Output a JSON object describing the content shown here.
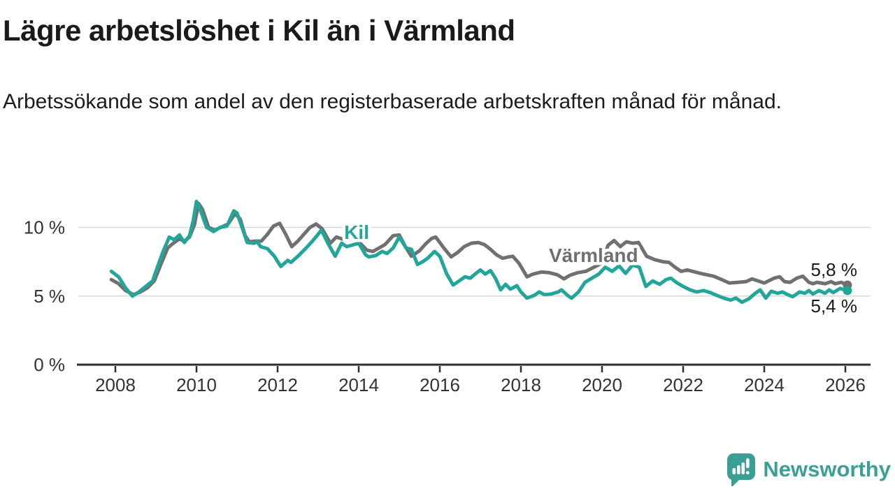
{
  "header": {
    "title": "Lägre arbetslöshet i Kil än i Värmland",
    "subtitle": "Arbetssökande som andel av den registerbaserade arbetskraften månad för månad."
  },
  "footer": {
    "brand": "Newsworthy",
    "brand_color": "#3aa096"
  },
  "chart_data": {
    "type": "line",
    "title": "Lägre arbetslöshet i Kil än i Värmland",
    "x_unit": "year (decimal, monthly series)",
    "x_range": [
      2007.9,
      2026.05
    ],
    "ylim": [
      0,
      12
    ],
    "grid": "horizontal",
    "legend_position": "inline-labels-on-lines",
    "axis_color": "#2e2e2e",
    "gridline_color": "#d9d9d9",
    "tick_label_color": "#333333",
    "x_axis": {
      "ticks": [
        2008,
        2010,
        2012,
        2014,
        2016,
        2018,
        2020,
        2022,
        2024,
        2026
      ],
      "tick_labels": [
        "2008",
        "2010",
        "2012",
        "2014",
        "2016",
        "2018",
        "2020",
        "2022",
        "2024",
        "2026"
      ]
    },
    "y_axis": {
      "ticks": [
        0,
        5,
        10
      ],
      "tick_labels": [
        "0 %",
        "5 %",
        "10 %"
      ]
    },
    "annotations": {
      "end_label_color": "#1a1a1a"
    },
    "series": [
      {
        "name": "Värmland",
        "color": "#707070",
        "end_label": "5,8 %",
        "end_label_side": "above",
        "label_anchor": {
          "year": 2019.79,
          "value": 7.48
        },
        "points": [
          [
            2007.9,
            6.2
          ],
          [
            2008.08,
            5.9
          ],
          [
            2008.25,
            5.4
          ],
          [
            2008.45,
            5.1
          ],
          [
            2008.62,
            5.3
          ],
          [
            2008.79,
            5.6
          ],
          [
            2008.96,
            6.1
          ],
          [
            2009.12,
            7.3
          ],
          [
            2009.29,
            8.5
          ],
          [
            2009.45,
            8.9
          ],
          [
            2009.58,
            9.15
          ],
          [
            2009.7,
            9.0
          ],
          [
            2009.83,
            9.3
          ],
          [
            2009.95,
            10.2
          ],
          [
            2010.05,
            11.75
          ],
          [
            2010.15,
            11.3
          ],
          [
            2010.3,
            10.0
          ],
          [
            2010.45,
            9.8
          ],
          [
            2010.6,
            10.0
          ],
          [
            2010.78,
            10.25
          ],
          [
            2010.95,
            11.0
          ],
          [
            2011.08,
            10.6
          ],
          [
            2011.2,
            9.4
          ],
          [
            2011.3,
            8.95
          ],
          [
            2011.45,
            9.0
          ],
          [
            2011.6,
            9.0
          ],
          [
            2011.75,
            9.5
          ],
          [
            2011.9,
            10.1
          ],
          [
            2012.05,
            10.3
          ],
          [
            2012.2,
            9.5
          ],
          [
            2012.35,
            8.6
          ],
          [
            2012.5,
            9.0
          ],
          [
            2012.65,
            9.5
          ],
          [
            2012.8,
            10.0
          ],
          [
            2012.95,
            10.25
          ],
          [
            2013.1,
            9.9
          ],
          [
            2013.3,
            8.85
          ],
          [
            2013.45,
            9.3
          ],
          [
            2013.6,
            9.15
          ],
          [
            2013.8,
            9.3
          ],
          [
            2014.0,
            8.95
          ],
          [
            2014.2,
            8.35
          ],
          [
            2014.35,
            8.25
          ],
          [
            2014.5,
            8.5
          ],
          [
            2014.65,
            8.75
          ],
          [
            2014.85,
            9.4
          ],
          [
            2015.0,
            9.45
          ],
          [
            2015.15,
            8.6
          ],
          [
            2015.3,
            7.9
          ],
          [
            2015.5,
            8.3
          ],
          [
            2015.65,
            8.8
          ],
          [
            2015.8,
            9.2
          ],
          [
            2015.9,
            9.3
          ],
          [
            2016.1,
            8.5
          ],
          [
            2016.28,
            7.85
          ],
          [
            2016.45,
            8.2
          ],
          [
            2016.6,
            8.6
          ],
          [
            2016.78,
            8.85
          ],
          [
            2016.95,
            8.9
          ],
          [
            2017.1,
            8.75
          ],
          [
            2017.25,
            8.4
          ],
          [
            2017.4,
            8.0
          ],
          [
            2017.55,
            7.75
          ],
          [
            2017.7,
            7.85
          ],
          [
            2017.8,
            7.9
          ],
          [
            2017.95,
            7.4
          ],
          [
            2018.15,
            6.4
          ],
          [
            2018.3,
            6.6
          ],
          [
            2018.5,
            6.75
          ],
          [
            2018.7,
            6.7
          ],
          [
            2018.9,
            6.55
          ],
          [
            2019.06,
            6.25
          ],
          [
            2019.2,
            6.5
          ],
          [
            2019.4,
            6.7
          ],
          [
            2019.6,
            6.8
          ],
          [
            2019.8,
            7.1
          ],
          [
            2020.0,
            7.4
          ],
          [
            2020.15,
            8.7
          ],
          [
            2020.3,
            9.05
          ],
          [
            2020.45,
            8.6
          ],
          [
            2020.6,
            8.95
          ],
          [
            2020.75,
            8.85
          ],
          [
            2020.9,
            8.9
          ],
          [
            2021.1,
            7.9
          ],
          [
            2021.3,
            7.65
          ],
          [
            2021.5,
            7.5
          ],
          [
            2021.65,
            7.45
          ],
          [
            2021.8,
            7.1
          ],
          [
            2021.95,
            6.8
          ],
          [
            2022.1,
            6.9
          ],
          [
            2022.3,
            6.75
          ],
          [
            2022.5,
            6.6
          ],
          [
            2022.75,
            6.45
          ],
          [
            2022.95,
            6.2
          ],
          [
            2023.14,
            5.95
          ],
          [
            2023.35,
            6.0
          ],
          [
            2023.55,
            6.05
          ],
          [
            2023.7,
            6.25
          ],
          [
            2023.9,
            6.05
          ],
          [
            2024.0,
            5.95
          ],
          [
            2024.24,
            6.3
          ],
          [
            2024.38,
            6.4
          ],
          [
            2024.5,
            6.05
          ],
          [
            2024.64,
            6.0
          ],
          [
            2024.8,
            6.3
          ],
          [
            2024.95,
            6.45
          ],
          [
            2025.1,
            6.0
          ],
          [
            2025.2,
            5.9
          ],
          [
            2025.3,
            6.0
          ],
          [
            2025.5,
            5.9
          ],
          [
            2025.65,
            6.05
          ],
          [
            2025.75,
            5.9
          ],
          [
            2025.9,
            6.0
          ],
          [
            2026.05,
            5.8
          ]
        ]
      },
      {
        "name": "Kil",
        "color": "#22a69a",
        "end_label": "5,4 %",
        "end_label_side": "below",
        "label_anchor": {
          "year": 2013.95,
          "value": 9.16
        },
        "points": [
          [
            2007.9,
            6.8
          ],
          [
            2008.08,
            6.4
          ],
          [
            2008.25,
            5.6
          ],
          [
            2008.42,
            5.0
          ],
          [
            2008.58,
            5.3
          ],
          [
            2008.75,
            5.7
          ],
          [
            2008.92,
            6.1
          ],
          [
            2009.0,
            6.8
          ],
          [
            2009.17,
            8.2
          ],
          [
            2009.33,
            9.3
          ],
          [
            2009.45,
            9.1
          ],
          [
            2009.58,
            9.45
          ],
          [
            2009.7,
            8.9
          ],
          [
            2009.83,
            9.4
          ],
          [
            2009.92,
            10.5
          ],
          [
            2010.0,
            11.9
          ],
          [
            2010.08,
            11.4
          ],
          [
            2010.25,
            10.0
          ],
          [
            2010.42,
            9.7
          ],
          [
            2010.58,
            10.0
          ],
          [
            2010.75,
            10.1
          ],
          [
            2010.92,
            11.2
          ],
          [
            2011.0,
            11.05
          ],
          [
            2011.17,
            9.6
          ],
          [
            2011.25,
            8.9
          ],
          [
            2011.42,
            8.85
          ],
          [
            2011.5,
            8.95
          ],
          [
            2011.58,
            8.6
          ],
          [
            2011.75,
            8.45
          ],
          [
            2011.92,
            7.9
          ],
          [
            2012.08,
            7.15
          ],
          [
            2012.25,
            7.6
          ],
          [
            2012.33,
            7.45
          ],
          [
            2012.5,
            7.9
          ],
          [
            2012.67,
            8.4
          ],
          [
            2012.83,
            8.9
          ],
          [
            2013.0,
            9.5
          ],
          [
            2013.08,
            9.8
          ],
          [
            2013.25,
            8.8
          ],
          [
            2013.42,
            7.9
          ],
          [
            2013.58,
            8.85
          ],
          [
            2013.7,
            8.6
          ],
          [
            2013.83,
            8.7
          ],
          [
            2014.0,
            8.85
          ],
          [
            2014.17,
            8.0
          ],
          [
            2014.25,
            7.85
          ],
          [
            2014.42,
            7.95
          ],
          [
            2014.58,
            8.25
          ],
          [
            2014.7,
            8.1
          ],
          [
            2014.85,
            8.5
          ],
          [
            2015.0,
            9.3
          ],
          [
            2015.17,
            8.5
          ],
          [
            2015.3,
            8.4
          ],
          [
            2015.45,
            7.3
          ],
          [
            2015.58,
            7.5
          ],
          [
            2015.7,
            7.75
          ],
          [
            2015.87,
            8.25
          ],
          [
            2016.0,
            7.9
          ],
          [
            2016.17,
            6.6
          ],
          [
            2016.33,
            5.8
          ],
          [
            2016.5,
            6.15
          ],
          [
            2016.62,
            6.4
          ],
          [
            2016.75,
            6.3
          ],
          [
            2016.87,
            6.6
          ],
          [
            2017.0,
            6.9
          ],
          [
            2017.12,
            6.6
          ],
          [
            2017.25,
            6.85
          ],
          [
            2017.37,
            6.3
          ],
          [
            2017.5,
            5.45
          ],
          [
            2017.62,
            5.85
          ],
          [
            2017.74,
            5.5
          ],
          [
            2017.9,
            5.75
          ],
          [
            2018.0,
            5.3
          ],
          [
            2018.15,
            4.85
          ],
          [
            2018.33,
            5.05
          ],
          [
            2018.45,
            5.3
          ],
          [
            2018.58,
            5.1
          ],
          [
            2018.75,
            5.15
          ],
          [
            2018.92,
            5.3
          ],
          [
            2019.0,
            5.45
          ],
          [
            2019.17,
            5.0
          ],
          [
            2019.25,
            4.85
          ],
          [
            2019.42,
            5.3
          ],
          [
            2019.58,
            6.0
          ],
          [
            2019.75,
            6.3
          ],
          [
            2019.92,
            6.6
          ],
          [
            2020.08,
            7.1
          ],
          [
            2020.25,
            6.8
          ],
          [
            2020.42,
            7.2
          ],
          [
            2020.58,
            6.65
          ],
          [
            2020.75,
            7.25
          ],
          [
            2020.92,
            7.1
          ],
          [
            2021.08,
            5.7
          ],
          [
            2021.25,
            6.1
          ],
          [
            2021.42,
            5.85
          ],
          [
            2021.58,
            6.2
          ],
          [
            2021.7,
            6.3
          ],
          [
            2021.83,
            6.0
          ],
          [
            2022.0,
            5.7
          ],
          [
            2022.17,
            5.45
          ],
          [
            2022.33,
            5.3
          ],
          [
            2022.5,
            5.4
          ],
          [
            2022.67,
            5.25
          ],
          [
            2022.83,
            5.05
          ],
          [
            2023.0,
            4.85
          ],
          [
            2023.17,
            4.7
          ],
          [
            2023.3,
            4.85
          ],
          [
            2023.45,
            4.55
          ],
          [
            2023.62,
            4.8
          ],
          [
            2023.78,
            5.2
          ],
          [
            2023.9,
            5.45
          ],
          [
            2024.04,
            4.85
          ],
          [
            2024.17,
            5.35
          ],
          [
            2024.33,
            5.2
          ],
          [
            2024.45,
            5.3
          ],
          [
            2024.58,
            5.1
          ],
          [
            2024.7,
            4.95
          ],
          [
            2024.87,
            5.3
          ],
          [
            2025.0,
            5.2
          ],
          [
            2025.1,
            5.4
          ],
          [
            2025.2,
            5.15
          ],
          [
            2025.35,
            5.4
          ],
          [
            2025.5,
            5.2
          ],
          [
            2025.6,
            5.45
          ],
          [
            2025.7,
            5.25
          ],
          [
            2025.87,
            5.55
          ],
          [
            2026.05,
            5.4
          ]
        ]
      }
    ]
  }
}
